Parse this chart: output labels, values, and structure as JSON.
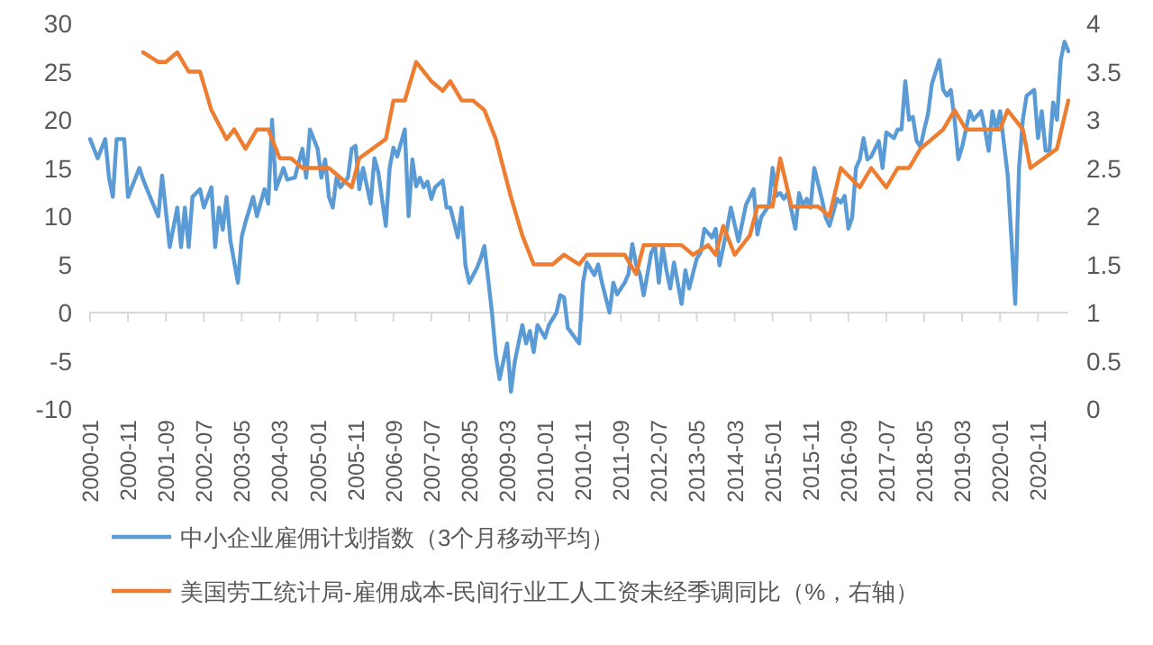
{
  "chart_data": {
    "type": "line",
    "legend": "bottom",
    "xlim": [
      "2000-01",
      "2021-07"
    ],
    "xticks": [
      "2000-01",
      "2000-11",
      "2001-09",
      "2002-07",
      "2003-05",
      "2004-03",
      "2005-01",
      "2005-11",
      "2006-09",
      "2007-07",
      "2008-05",
      "2009-03",
      "2010-01",
      "2010-11",
      "2011-09",
      "2012-07",
      "2013-05",
      "2014-03",
      "2015-01",
      "2015-11",
      "2016-09",
      "2017-07",
      "2018-05",
      "2019-03",
      "2020-01",
      "2020-11"
    ],
    "ylim": [
      -10,
      30
    ],
    "yticks": [
      -10,
      -5,
      0,
      5,
      10,
      15,
      20,
      25,
      30
    ],
    "y2lim": [
      0,
      4
    ],
    "y2ticks": [
      0,
      0.5,
      1,
      1.5,
      2,
      2.5,
      3,
      3.5,
      4
    ],
    "series": [
      {
        "name": "中小企业雇佣计划指数（3个月移动平均）",
        "color": "#5b9bd5",
        "x": [
          "2000-01",
          "2000-03",
          "2000-04",
          "2000-05",
          "2000-06",
          "2000-07",
          "2000-08",
          "2000-10",
          "2000-11",
          "2000-12",
          "2001-02",
          "2001-03",
          "2001-04",
          "2001-06",
          "2001-07",
          "2001-08",
          "2001-10",
          "2001-12",
          "2002-01",
          "2002-02",
          "2002-03",
          "2002-04",
          "2002-06",
          "2002-07",
          "2002-09",
          "2002-10",
          "2002-11",
          "2002-12",
          "2003-01",
          "2003-02",
          "2003-04",
          "2003-05",
          "2003-06",
          "2003-08",
          "2003-09",
          "2003-11",
          "2003-12",
          "2004-01",
          "2004-02",
          "2004-04",
          "2004-05",
          "2004-07",
          "2004-09",
          "2004-10",
          "2004-11",
          "2005-01",
          "2005-02",
          "2005-03",
          "2005-04",
          "2005-05",
          "2005-06",
          "2005-07",
          "2005-09",
          "2005-10",
          "2005-11",
          "2005-12",
          "2006-01",
          "2006-03",
          "2006-04",
          "2006-05",
          "2006-07",
          "2006-08",
          "2006-09",
          "2006-10",
          "2006-12",
          "2007-01",
          "2007-02",
          "2007-03",
          "2007-04",
          "2007-05",
          "2007-06",
          "2007-07",
          "2007-08",
          "2007-10",
          "2007-11",
          "2007-12",
          "2008-02",
          "2008-03",
          "2008-04",
          "2008-05",
          "2008-07",
          "2008-08",
          "2008-09",
          "2008-11",
          "2008-12",
          "2009-01",
          "2009-03",
          "2009-04",
          "2009-05",
          "2009-07",
          "2009-08",
          "2009-09",
          "2009-10",
          "2009-11",
          "2010-01",
          "2010-02",
          "2010-04",
          "2010-05",
          "2010-06",
          "2010-07",
          "2010-10",
          "2010-11",
          "2010-12",
          "2011-02",
          "2011-03",
          "2011-04",
          "2011-06",
          "2011-07",
          "2011-08",
          "2011-10",
          "2011-11",
          "2011-12",
          "2012-01",
          "2012-02",
          "2012-03",
          "2012-05",
          "2012-06",
          "2012-07",
          "2012-08",
          "2012-09",
          "2012-10",
          "2012-11",
          "2013-01",
          "2013-02",
          "2013-03",
          "2013-05",
          "2013-06",
          "2013-07",
          "2013-09",
          "2013-10",
          "2013-11",
          "2014-01",
          "2014-02",
          "2014-04",
          "2014-06",
          "2014-08",
          "2014-09",
          "2014-10",
          "2014-12",
          "2015-01",
          "2015-02",
          "2015-03",
          "2015-04",
          "2015-05",
          "2015-07",
          "2015-08",
          "2015-09",
          "2015-10",
          "2015-11",
          "2015-12",
          "2016-02",
          "2016-03",
          "2016-04",
          "2016-06",
          "2016-07",
          "2016-08",
          "2016-09",
          "2016-10",
          "2016-11",
          "2016-12",
          "2017-01",
          "2017-02",
          "2017-03",
          "2017-05",
          "2017-06",
          "2017-07",
          "2017-09",
          "2017-10",
          "2017-11",
          "2017-12",
          "2018-01",
          "2018-02",
          "2018-03",
          "2018-04",
          "2018-05",
          "2018-06",
          "2018-07",
          "2018-09",
          "2018-10",
          "2018-11",
          "2018-12",
          "2019-01",
          "2019-02",
          "2019-03",
          "2019-04",
          "2019-05",
          "2019-06",
          "2019-08",
          "2019-09",
          "2019-10",
          "2019-11",
          "2019-12",
          "2020-01",
          "2020-03",
          "2020-05",
          "2020-06",
          "2020-07",
          "2020-08",
          "2020-10",
          "2020-11",
          "2020-12",
          "2021-01",
          "2021-02",
          "2021-03",
          "2021-04",
          "2021-05",
          "2021-06",
          "2021-07"
        ],
        "values": [
          18,
          16,
          17,
          18,
          14,
          12,
          18,
          18,
          12,
          13,
          15,
          13.8,
          12.8,
          10.9,
          10,
          14.2,
          6.8,
          10.9,
          6.8,
          10.9,
          6.8,
          12,
          12.8,
          10.9,
          13,
          6.8,
          10.9,
          8.6,
          12,
          7.5,
          3.1,
          7.9,
          9.4,
          12,
          10,
          12.8,
          11.3,
          20,
          12.8,
          15,
          13.8,
          14,
          17,
          14,
          19,
          17,
          14,
          15.9,
          12,
          10.9,
          14,
          13,
          14,
          17,
          17.3,
          12.8,
          15,
          11.3,
          16,
          14.6,
          9,
          15,
          17.1,
          16.2,
          19,
          10,
          15.9,
          13.1,
          14,
          13,
          13.6,
          11.8,
          13,
          13.7,
          10.9,
          10.9,
          7.8,
          10.9,
          4.9,
          3.1,
          4.6,
          5.6,
          6.9,
          0,
          -4.4,
          -6.9,
          -3.2,
          -8.2,
          -5.1,
          -1.3,
          -3.2,
          -1.9,
          -4.1,
          -1.3,
          -2.6,
          -1.3,
          0,
          1.8,
          1.6,
          -1.6,
          -3.2,
          3.1,
          5.2,
          3.9,
          5,
          3.1,
          0,
          3.1,
          1.9,
          3.1,
          4,
          7.1,
          5,
          4,
          1.8,
          6.2,
          6.9,
          3.1,
          6.9,
          4.4,
          2.5,
          5.2,
          0.9,
          4.4,
          2.5,
          5.6,
          6.2,
          8.7,
          7.8,
          8.7,
          4.9,
          8.7,
          10.9,
          7.4,
          11.2,
          12.8,
          8.1,
          9.9,
          11.1,
          15,
          12.1,
          12.4,
          11.8,
          12.4,
          8.7,
          12.4,
          11.1,
          11.8,
          10.9,
          15,
          11.8,
          9.9,
          9,
          11.8,
          11.4,
          12.1,
          8.7,
          9.9,
          15,
          15.9,
          18.1,
          15.9,
          16.2,
          17.8,
          15,
          18.7,
          18.1,
          19,
          19,
          24,
          20,
          20.3,
          17.8,
          17.2,
          19,
          20.6,
          23.7,
          26.2,
          23.1,
          22.5,
          23.1,
          20,
          15.9,
          17.2,
          19,
          20.9,
          20,
          20.9,
          19,
          16.8,
          20.9,
          19,
          20.9,
          14.3,
          0.9,
          15,
          20,
          22.5,
          23.1,
          18.1,
          20.9,
          16.8,
          16.8,
          21.8,
          20,
          26.2,
          28.1,
          27.1
        ]
      },
      {
        "name": "美国劳工统计局-雇佣成本-民间行业工人工资未经季调同比（%，右轴）",
        "color": "#ed7d31",
        "axis": "y2",
        "x": [
          "2001-03",
          "2001-07",
          "2001-09",
          "2001-12",
          "2002-03",
          "2002-06",
          "2002-09",
          "2003-01",
          "2003-03",
          "2003-06",
          "2003-09",
          "2003-12",
          "2004-03",
          "2004-06",
          "2004-09",
          "2005-04",
          "2005-07",
          "2005-10",
          "2005-12",
          "2006-07",
          "2006-09",
          "2006-12",
          "2007-03",
          "2007-07",
          "2007-10",
          "2007-12",
          "2008-03",
          "2008-06",
          "2008-09",
          "2008-12",
          "2009-04",
          "2009-07",
          "2009-10",
          "2010-03",
          "2010-06",
          "2010-10",
          "2010-12",
          "2011-10",
          "2012-01",
          "2012-03",
          "2013-01",
          "2013-04",
          "2013-08",
          "2013-10",
          "2013-12",
          "2014-03",
          "2014-07",
          "2014-09",
          "2015-01",
          "2015-03",
          "2015-06",
          "2016-01",
          "2016-04",
          "2016-07",
          "2016-12",
          "2017-03",
          "2017-07",
          "2017-10",
          "2018-01",
          "2018-04",
          "2018-10",
          "2019-01",
          "2019-04",
          "2020-01",
          "2020-03",
          "2020-07",
          "2020-09",
          "2021-04",
          "2021-07"
        ],
        "values": [
          3.7,
          3.6,
          3.6,
          3.7,
          3.5,
          3.5,
          3.1,
          2.8,
          2.9,
          2.7,
          2.9,
          2.9,
          2.6,
          2.6,
          2.5,
          2.5,
          2.4,
          2.3,
          2.6,
          2.8,
          3.2,
          3.2,
          3.6,
          3.4,
          3.3,
          3.4,
          3.2,
          3.2,
          3.1,
          2.8,
          2.2,
          1.8,
          1.5,
          1.5,
          1.6,
          1.5,
          1.6,
          1.6,
          1.4,
          1.7,
          1.7,
          1.6,
          1.7,
          1.6,
          1.9,
          1.6,
          1.8,
          2.1,
          2.1,
          2.6,
          2.1,
          2.1,
          2,
          2.5,
          2.3,
          2.5,
          2.3,
          2.5,
          2.5,
          2.7,
          2.9,
          3.1,
          2.9,
          2.9,
          3.1,
          2.9,
          2.5,
          2.7,
          3.2
        ]
      }
    ]
  }
}
